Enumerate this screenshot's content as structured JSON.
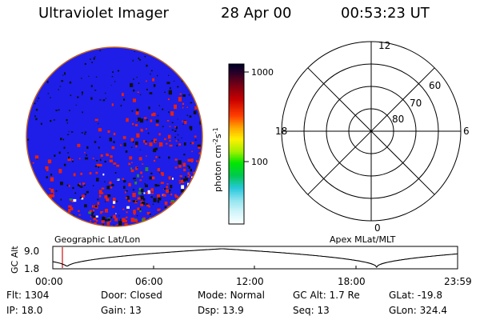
{
  "header": {
    "title": "Ultraviolet Imager",
    "date": "28 Apr 00",
    "time": "00:53:23 UT"
  },
  "colorbar": {
    "ticks": [
      "1000",
      "100"
    ],
    "unit_label": "photon cm",
    "unit_sup1": "-2",
    "unit_mid": "s",
    "unit_sup2": "-1"
  },
  "polar_plot": {
    "mlt_labels": [
      "12",
      "18",
      "6",
      "0"
    ],
    "lat_labels": [
      "60",
      "70",
      "80"
    ]
  },
  "altitude_plot": {
    "left_caption": "Geographic Lat/Lon",
    "right_caption": "Apex MLat/MLT",
    "y_axis_label": "GC Alt",
    "y_ticks": [
      "9.0",
      "1.8"
    ],
    "x_ticks": [
      "00:00",
      "06:00",
      "12:00",
      "18:00",
      "23:59"
    ]
  },
  "status": {
    "row1": [
      {
        "label": "Flt:",
        "value": "1304"
      },
      {
        "label": "Door:",
        "value": "Closed"
      },
      {
        "label": "Mode:",
        "value": "Normal"
      },
      {
        "label": "GC Alt:",
        "value": "1.7 Re"
      },
      {
        "label": "GLat:",
        "value": "-19.8"
      }
    ],
    "row2": [
      {
        "label": "IP:",
        "value": "18.0"
      },
      {
        "label": "Gain:",
        "value": "13"
      },
      {
        "label": "Dsp:",
        "value": "13.9"
      },
      {
        "label": "Seq:",
        "value": "13"
      },
      {
        "label": "GLon:",
        "value": "324.4"
      }
    ]
  }
}
